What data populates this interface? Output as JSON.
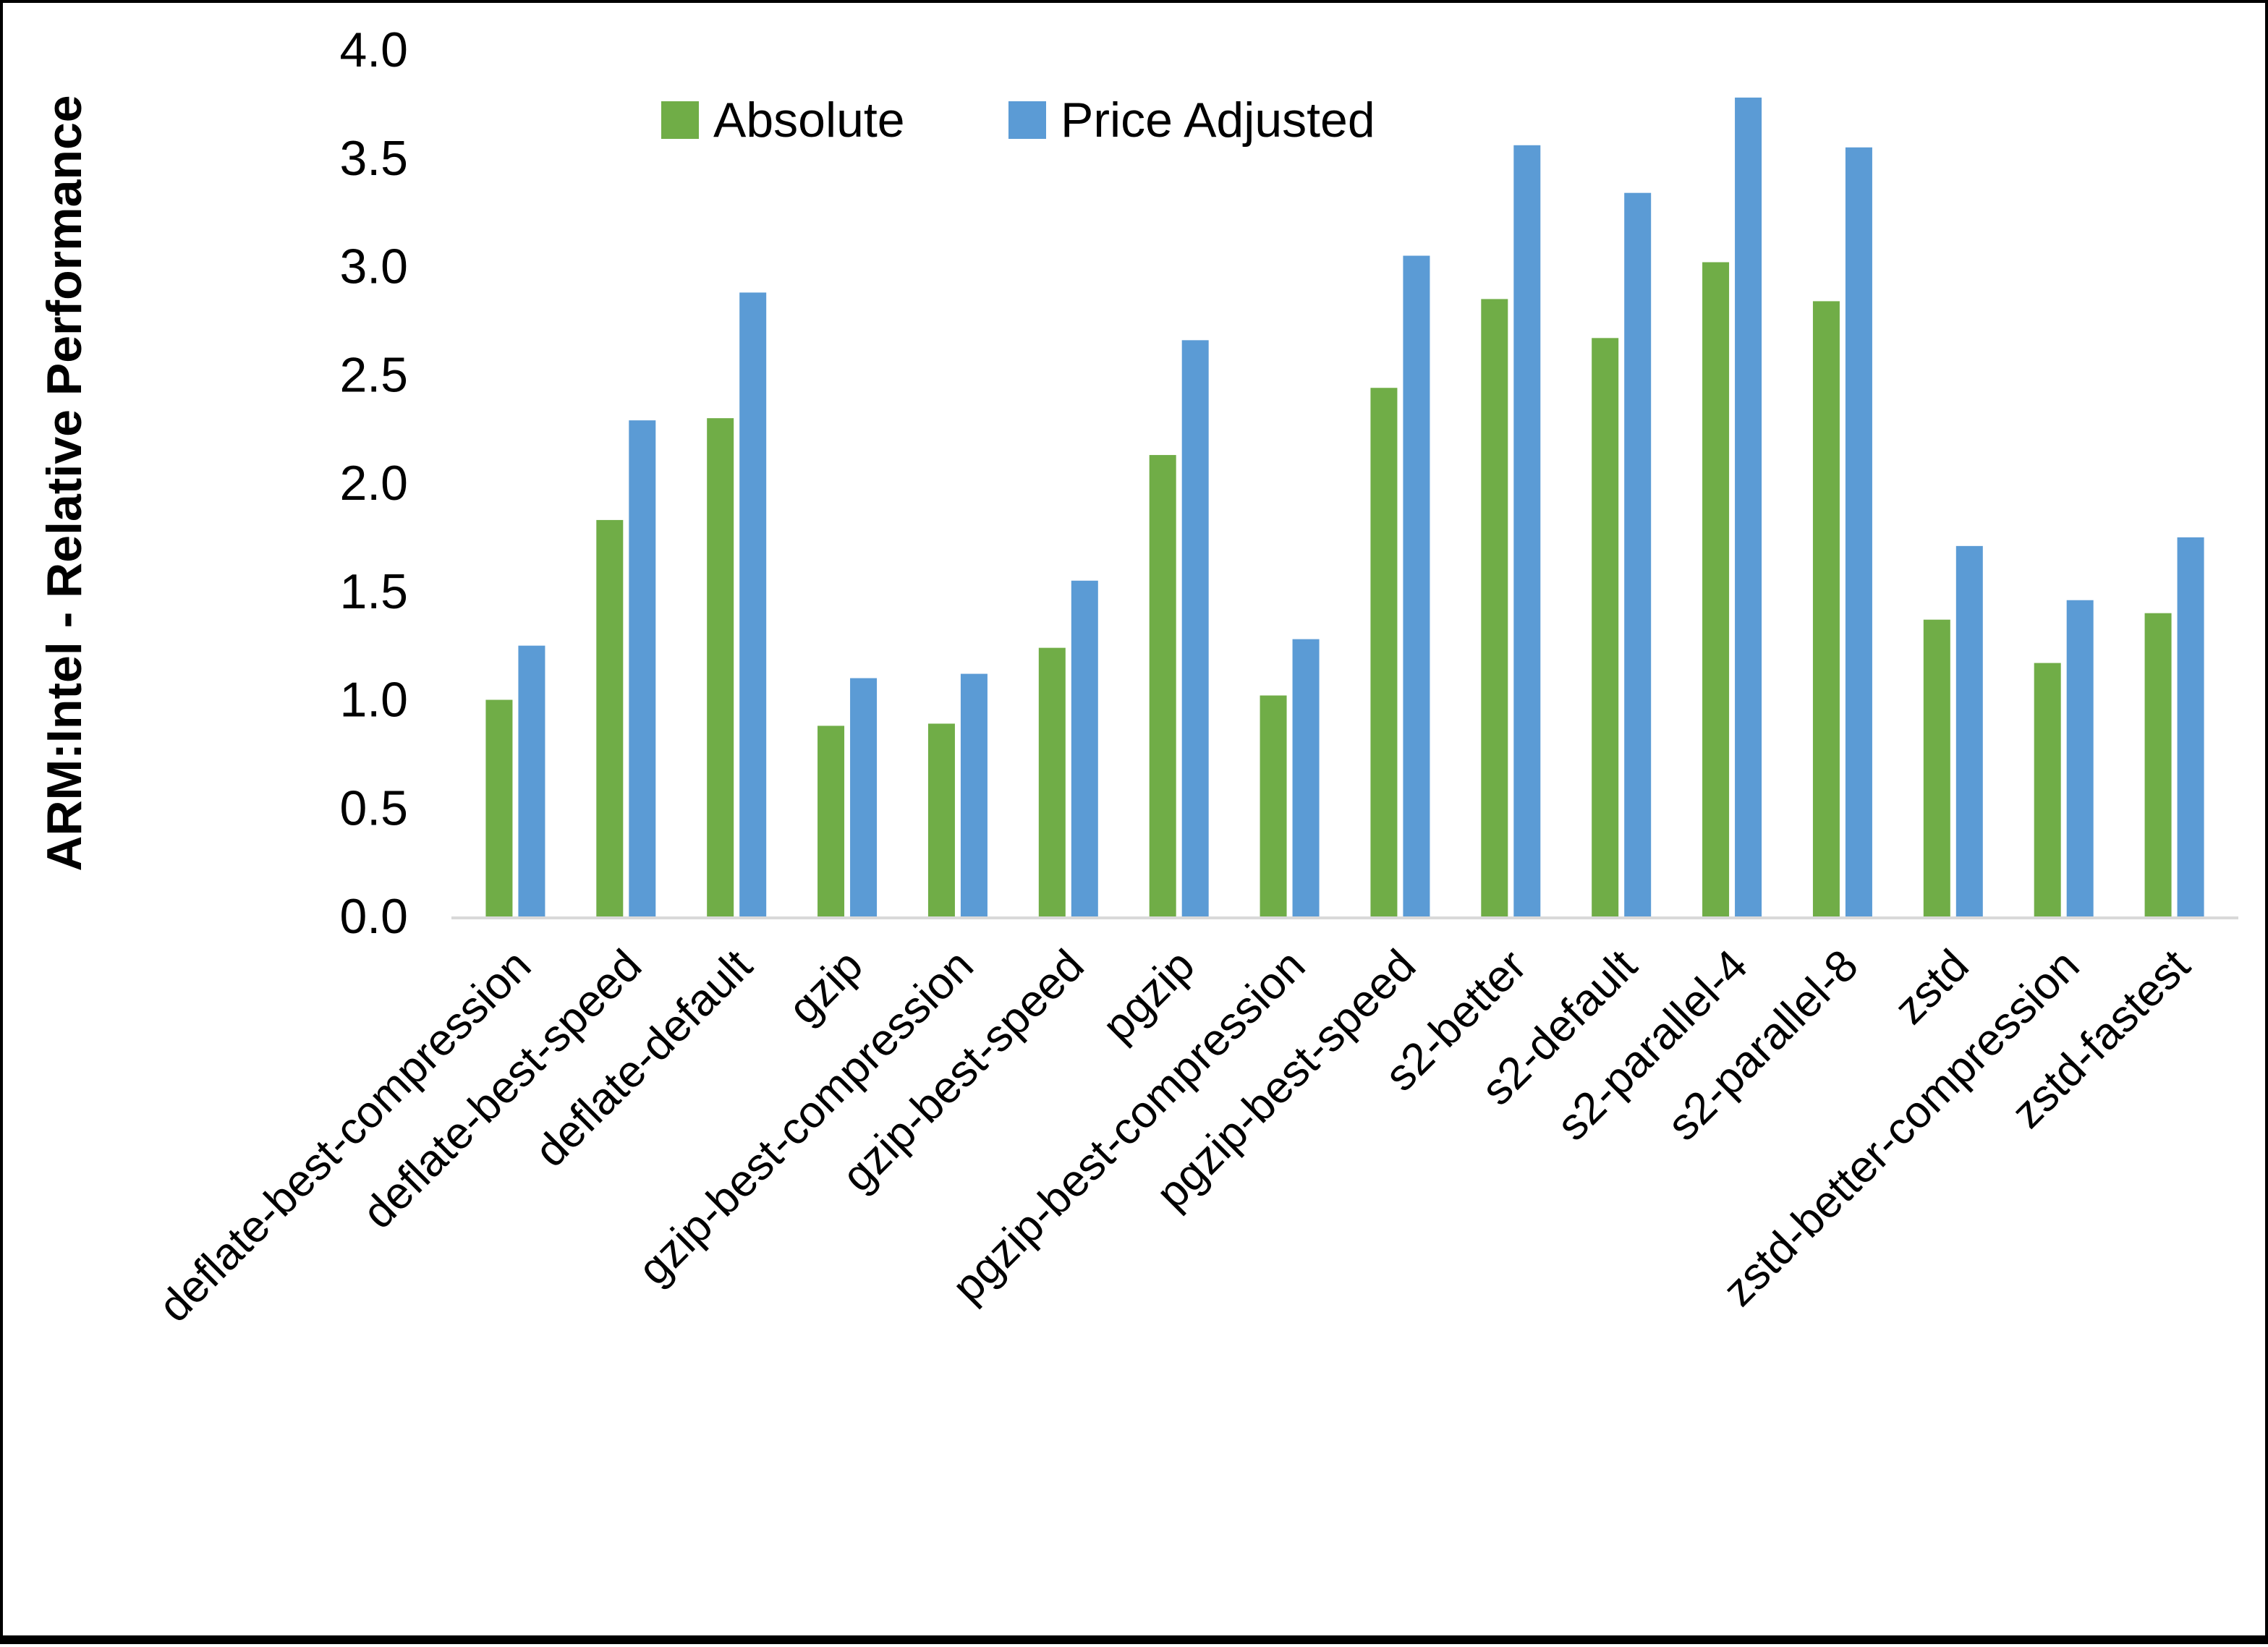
{
  "chart_data": {
    "type": "bar",
    "title": "",
    "ylabel": "ARM:Intel - Relative Performance",
    "xlabel": "",
    "ylim": [
      0.0,
      4.0
    ],
    "ytick_step": 0.5,
    "ytick_labels": [
      "0.0",
      "0.5",
      "1.0",
      "1.5",
      "2.0",
      "2.5",
      "3.0",
      "3.5",
      "4.0"
    ],
    "grid": false,
    "legend_position": "top-center",
    "axis_line_color": "#D9D9D9",
    "categories": [
      "deflate-best-compression",
      "deflate-best-speed",
      "deflate-default",
      "gzip",
      "gzip-best-compression",
      "gzip-best-speed",
      "pgzip",
      "pgzip-best-compression",
      "pgzip-best-speed",
      "s2-better",
      "s2-default",
      "s2-parallel-4",
      "s2-parallel-8",
      "zstd",
      "zstd-better-compression",
      "zstd-fastest"
    ],
    "series": [
      {
        "name": "Absolute",
        "color": "#70AD47",
        "values": [
          1.0,
          1.83,
          2.3,
          0.88,
          0.89,
          1.24,
          2.13,
          1.02,
          2.44,
          2.85,
          2.67,
          3.02,
          2.84,
          1.37,
          1.17,
          1.4
        ]
      },
      {
        "name": "Price Adjusted",
        "color": "#5B9BD5",
        "values": [
          1.25,
          2.29,
          2.88,
          1.1,
          1.12,
          1.55,
          2.66,
          1.28,
          3.05,
          3.56,
          3.34,
          3.78,
          3.55,
          1.71,
          1.46,
          1.75
        ]
      }
    ]
  }
}
